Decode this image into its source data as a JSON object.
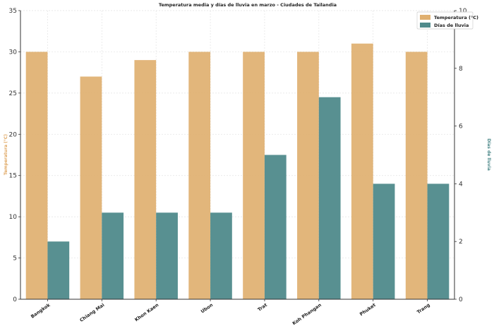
{
  "chart_data": {
    "type": "bar",
    "title": "Temperatura media y días de lluvia en marzo - Ciudades de Tailandia",
    "categories": [
      "Bangkok",
      "Chiang Mai",
      "Khon Kaen",
      "Ubon",
      "Trat",
      "Koh Phangan",
      "Phuket",
      "Trang"
    ],
    "series": [
      {
        "name": "Temperatura (°C)",
        "axis": "left",
        "color": "#e0b070",
        "values": [
          30,
          27,
          29,
          30,
          30,
          30,
          31,
          30
        ]
      },
      {
        "name": "Días de lluvia",
        "axis": "right",
        "color": "#4f8a8b",
        "values": [
          2,
          3,
          3,
          3,
          5,
          7,
          4,
          4
        ]
      }
    ],
    "ylabel_left": "Temperatura (°C)",
    "ylabel_right": "Días de lluvia",
    "ylim_left": [
      0,
      35
    ],
    "ylim_right": [
      0,
      10
    ],
    "yticks_left": [
      0,
      5,
      10,
      15,
      20,
      25,
      30,
      35
    ],
    "yticks_right": [
      0,
      2,
      4,
      6,
      8,
      10
    ],
    "grid": true,
    "legend_position": "top-right"
  }
}
